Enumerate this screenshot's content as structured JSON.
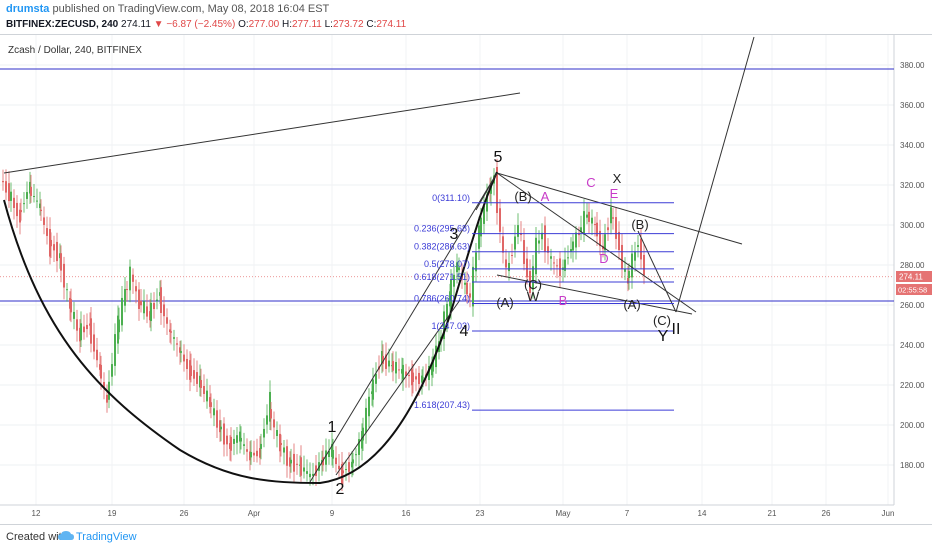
{
  "header": {
    "author": "drumsta",
    "published": "published on TradingView.com, May 08, 2018 16:04 EST",
    "symbol": "BITFINEX:ZECUSD, 240",
    "last": "274.11",
    "change": "▼ −6.87 (−2.45%)",
    "open_label": "O:",
    "open": "277.00",
    "high_label": "H:",
    "high": "277.11",
    "low_label": "L:",
    "low": "273.72",
    "close_label": "C:",
    "close": "274.11"
  },
  "chart_title": "Zcash / Dollar, 240, BITFINEX",
  "price_tags": {
    "last": "274.11",
    "countdown": "02:55:58"
  },
  "footer": {
    "created": "Created with",
    "brand": "TradingView"
  },
  "colors": {
    "up": "#4caf50",
    "down": "#e06666",
    "fib": "#3b3bd6",
    "wave_pink": "#c83cc8",
    "price_tag": "#e57373"
  },
  "chart_data": {
    "type": "candlestick",
    "title": "Zcash / Dollar, 240, BITFINEX",
    "ylim": [
      160,
      395
    ],
    "y_ticks": [
      "380.00",
      "360.00",
      "340.00",
      "320.00",
      "300.00",
      "280.00",
      "260.00",
      "240.00",
      "220.00",
      "200.00",
      "180.00"
    ],
    "x_ticks": [
      "12",
      "19",
      "26",
      "Apr",
      "9",
      "16",
      "23",
      "May",
      "7",
      "14",
      "21",
      "26",
      "Jun"
    ],
    "fib_levels": [
      {
        "label": "0(311.10)",
        "value": 311.1
      },
      {
        "label": "0.236(295.68)",
        "value": 295.68
      },
      {
        "label": "0.382(286.63)",
        "value": 286.63
      },
      {
        "label": "0.5(278.07)",
        "value": 278.07
      },
      {
        "label": "0.618(271.51)",
        "value": 271.51
      },
      {
        "label": "0.786(260.74)",
        "value": 260.74
      },
      {
        "label": "1(247.03)",
        "value": 247.03
      },
      {
        "label": "1.618(207.43)",
        "value": 207.43
      }
    ],
    "horizontal_lines": [
      378,
      262
    ],
    "wave_labels": [
      "1",
      "2",
      "3",
      "4",
      "5",
      "(A)",
      "(B)",
      "(C)",
      "W",
      "X",
      "Y",
      "II",
      "A",
      "B",
      "C",
      "D",
      "E",
      "(A)",
      "(B)",
      "(C)"
    ],
    "ohlc_last": {
      "open": 277.0,
      "high": 277.11,
      "low": 273.72,
      "close": 274.11
    }
  }
}
